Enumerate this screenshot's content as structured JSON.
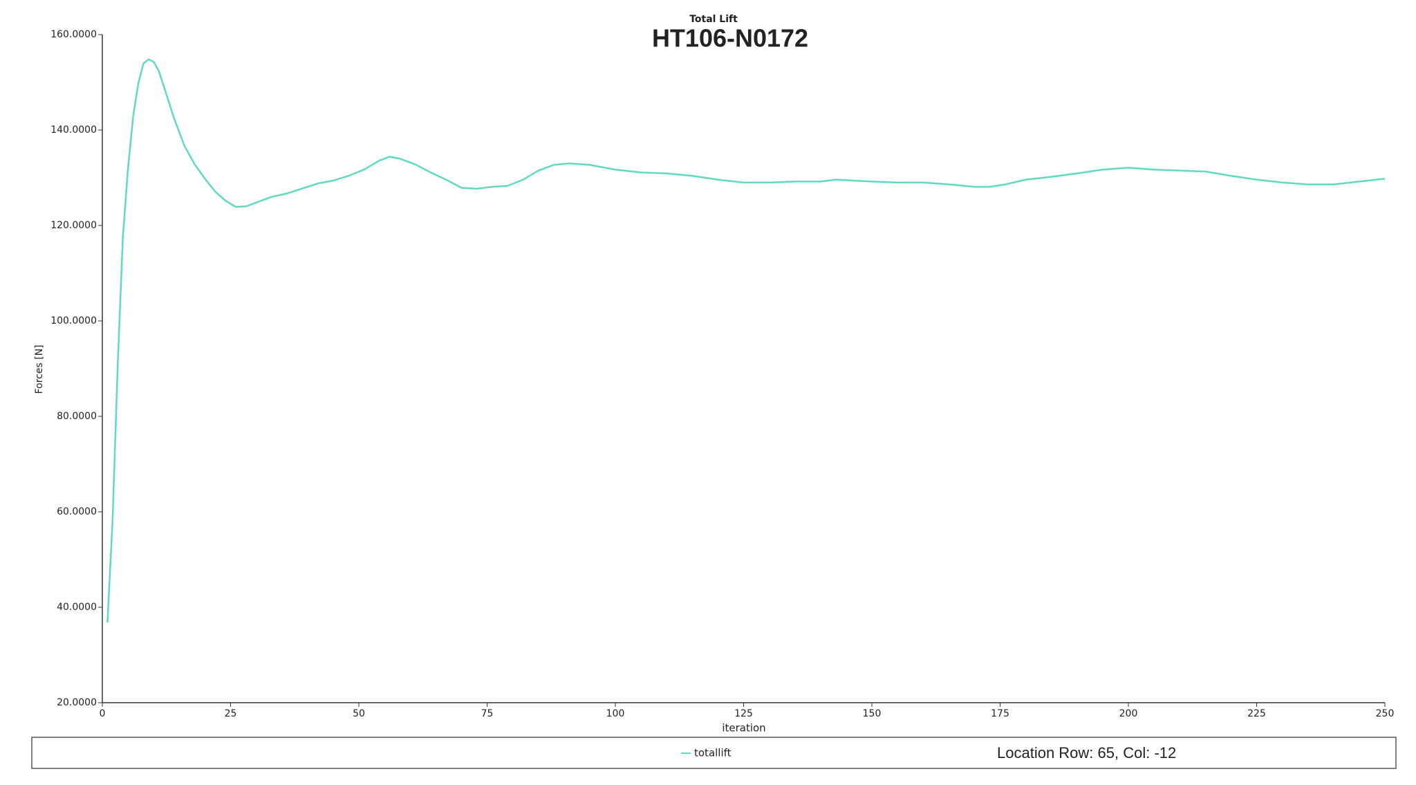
{
  "chart_data": {
    "type": "line",
    "supertitle": "Total Lift",
    "title": "HT106-N0172",
    "x_label": "iteration",
    "y_label": "Forces [N]",
    "status_text": "Location Row: 65, Col: -12",
    "xlim": [
      0,
      250
    ],
    "ylim": [
      20,
      160
    ],
    "xticks": [
      0,
      25,
      50,
      75,
      100,
      125,
      150,
      175,
      200,
      225,
      250
    ],
    "yticks": [
      {
        "value": 20,
        "label": "20.0000"
      },
      {
        "value": 40,
        "label": "40.0000"
      },
      {
        "value": 60,
        "label": "60.0000"
      },
      {
        "value": 80,
        "label": "80.0000"
      },
      {
        "value": 100,
        "label": "100.0000"
      },
      {
        "value": 120,
        "label": "120.0000"
      },
      {
        "value": 140,
        "label": "140.0000"
      },
      {
        "value": 160,
        "label": "160.0000"
      }
    ],
    "grid": false,
    "x": [
      1,
      2,
      3,
      4,
      5,
      6,
      7,
      8,
      9,
      10,
      11,
      12,
      14,
      16,
      18,
      20,
      22,
      24,
      26,
      28,
      30,
      33,
      36,
      40,
      42,
      45,
      48,
      51,
      54,
      56,
      58,
      61,
      64,
      67,
      70,
      73,
      76,
      79,
      82,
      85,
      88,
      91,
      95,
      100,
      105,
      110,
      115,
      120,
      125,
      130,
      135,
      140,
      143,
      150,
      155,
      160,
      165,
      170,
      173,
      176,
      180,
      185,
      190,
      195,
      200,
      205,
      210,
      215,
      220,
      225,
      230,
      235,
      240,
      245,
      250
    ],
    "series": [
      {
        "name": "totallift",
        "color": "#5fd9c4",
        "values": [
          36.8,
          58.3,
          90.8,
          117.5,
          131.9,
          142.8,
          149.7,
          153.9,
          154.8,
          154.3,
          152.4,
          149.1,
          142.4,
          136.7,
          132.8,
          129.8,
          127.1,
          125.2,
          123.9,
          124.0,
          124.8,
          126.0,
          126.7,
          128.1,
          128.8,
          129.4,
          130.4,
          131.7,
          133.6,
          134.4,
          134.0,
          132.8,
          131.1,
          129.6,
          127.9,
          127.7,
          128.1,
          128.3,
          129.6,
          131.5,
          132.7,
          133.0,
          132.7,
          131.7,
          131.1,
          130.9,
          130.4,
          129.6,
          129.0,
          129.0,
          129.2,
          129.2,
          129.6,
          129.2,
          129.0,
          129.0,
          128.6,
          128.1,
          128.1,
          128.6,
          129.6,
          130.2,
          130.9,
          131.7,
          132.1,
          131.7,
          131.5,
          131.3,
          130.4,
          129.6,
          129.0,
          128.6,
          128.6,
          129.2,
          129.8
        ]
      }
    ]
  }
}
